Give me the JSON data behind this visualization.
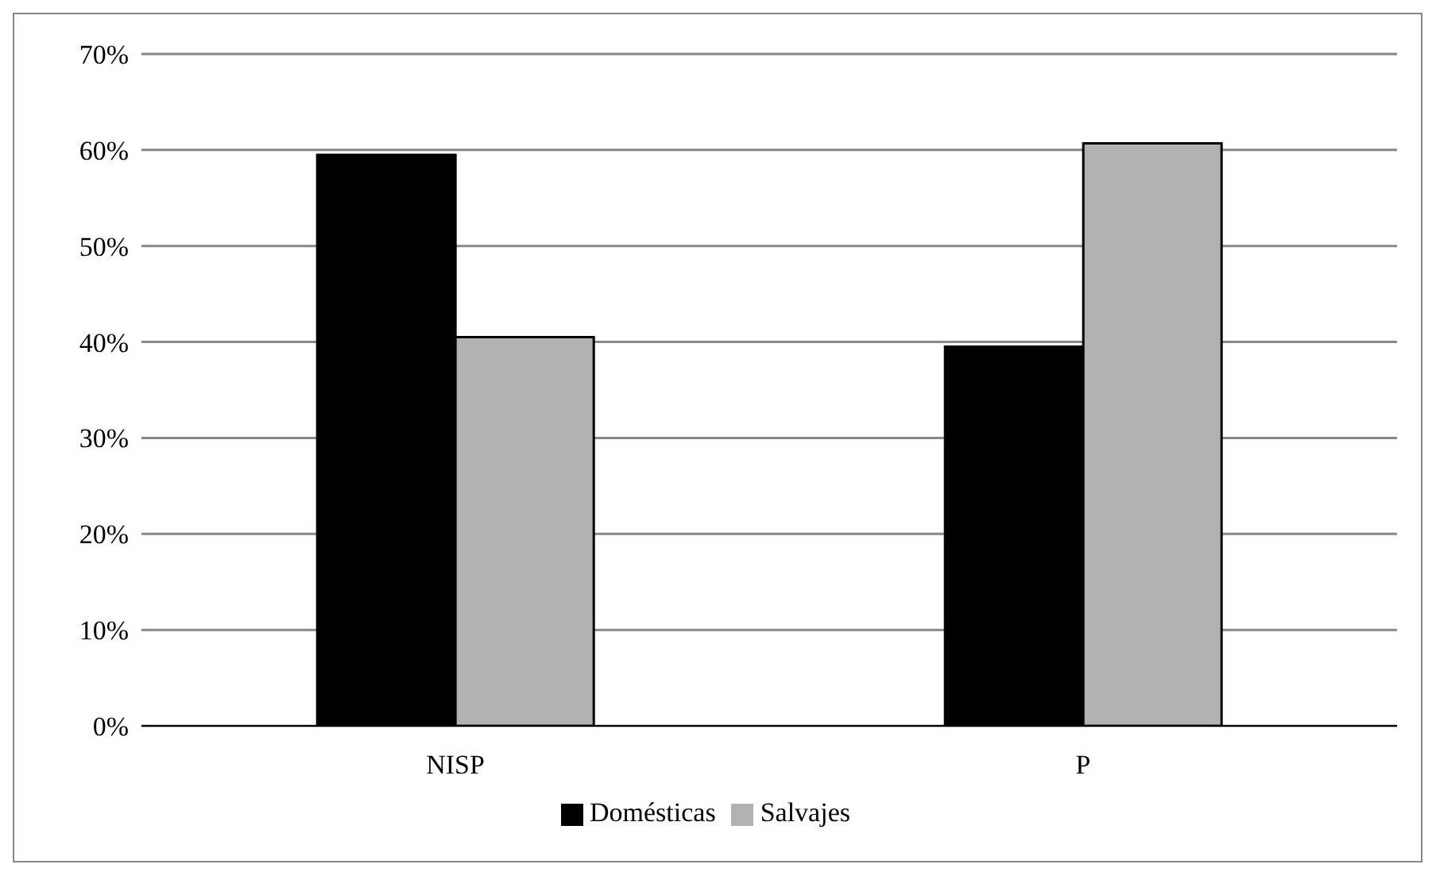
{
  "chart_data": {
    "type": "bar",
    "categories": [
      "NISP",
      "P"
    ],
    "series": [
      {
        "name": "Domésticas",
        "color": "#000000",
        "values": [
          59.5,
          39.5
        ]
      },
      {
        "name": "Salvajes",
        "color": "#b2b2b2",
        "values": [
          40.5,
          60.7
        ]
      }
    ],
    "ylim": [
      0,
      70
    ],
    "yticks": [
      {
        "value": 0,
        "label": "0%"
      },
      {
        "value": 10,
        "label": "10%"
      },
      {
        "value": 20,
        "label": "20%"
      },
      {
        "value": 30,
        "label": "30%"
      },
      {
        "value": 40,
        "label": "40%"
      },
      {
        "value": 50,
        "label": "50%"
      },
      {
        "value": 60,
        "label": "60%"
      },
      {
        "value": 70,
        "label": "70%"
      }
    ],
    "grid": "y",
    "legend": "bottom"
  }
}
